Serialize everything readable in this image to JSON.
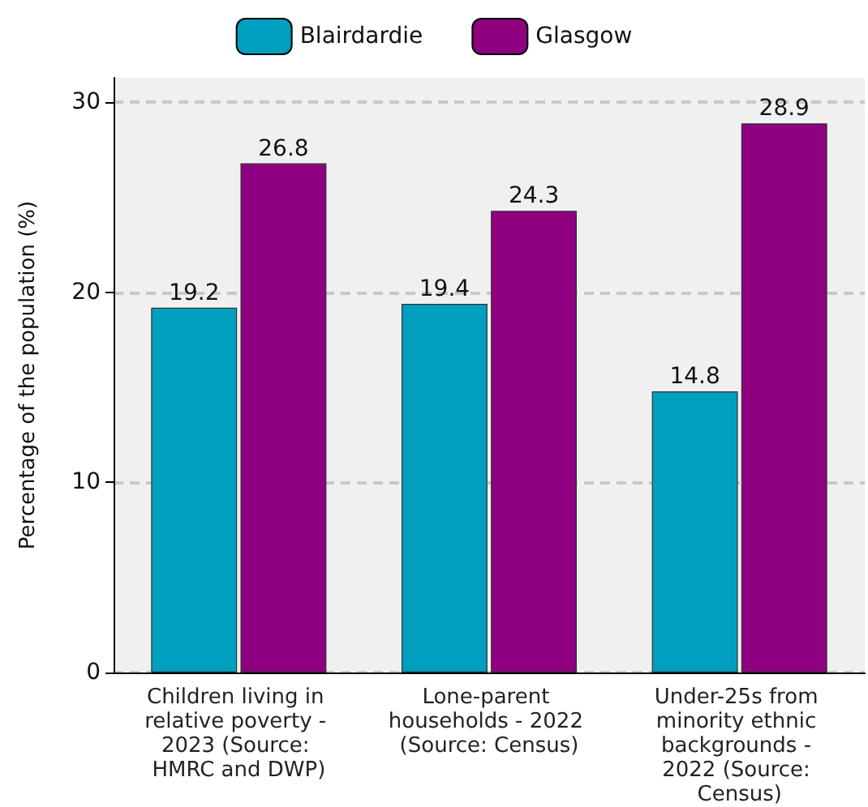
{
  "chart_data": {
    "type": "bar",
    "categories": [
      "Children living in relative poverty - 2023 (Source: HMRC and DWP)",
      "Lone-parent households - 2022 (Source: Census)",
      "Under-25s from minority ethnic backgrounds - 2022 (Source: Census)"
    ],
    "series": [
      {
        "name": "Blairdardie",
        "color": "#009fbf",
        "values": [
          19.2,
          19.4,
          14.8
        ]
      },
      {
        "name": "Glasgow",
        "color": "#8f0080",
        "values": [
          26.8,
          24.3,
          28.9
        ]
      }
    ],
    "ylabel": "Percentage of the population (%)",
    "ylim": [
      0,
      31.3
    ],
    "yticks": [
      0,
      10,
      20,
      30
    ],
    "data_labels": true,
    "grid": "y",
    "legend": "top"
  }
}
